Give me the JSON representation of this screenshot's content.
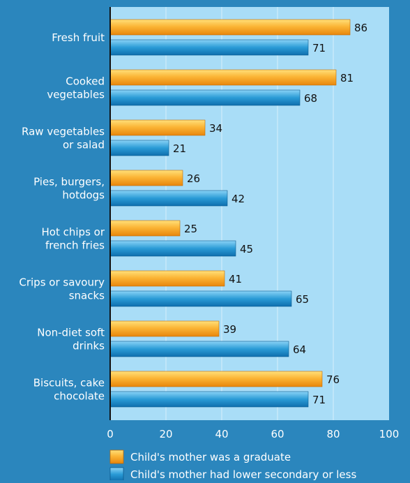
{
  "colors": {
    "background": "#2b86bd",
    "plot_area": "#a9ddf7",
    "series_graduate": "#f7a21b",
    "series_lower_secondary": "#1f8fcf"
  },
  "chart_data": {
    "type": "bar",
    "orientation": "horizontal",
    "categories": [
      [
        "Fresh fruit"
      ],
      [
        "Cooked",
        "vegetables"
      ],
      [
        "Raw vegetables",
        "or salad"
      ],
      [
        "Pies, burgers,",
        "hotdogs"
      ],
      [
        "Hot chips or",
        "french fries"
      ],
      [
        "Crips or savoury",
        "snacks"
      ],
      [
        "Non-diet soft",
        "drinks"
      ],
      [
        "Biscuits, cake",
        "chocolate"
      ]
    ],
    "series": [
      {
        "name": "Child's mother was a graduate",
        "values": [
          86,
          81,
          34,
          26,
          25,
          41,
          39,
          76
        ]
      },
      {
        "name": "Child's mother had lower secondary or less",
        "values": [
          71,
          68,
          21,
          42,
          45,
          65,
          64,
          71
        ]
      }
    ],
    "xlim": [
      0,
      100
    ],
    "xticks": [
      "0",
      "20",
      "40",
      "60",
      "80",
      "100"
    ],
    "title": "",
    "xlabel": "",
    "ylabel": "",
    "grid": "vertical gridlines",
    "legend": "bottom"
  }
}
